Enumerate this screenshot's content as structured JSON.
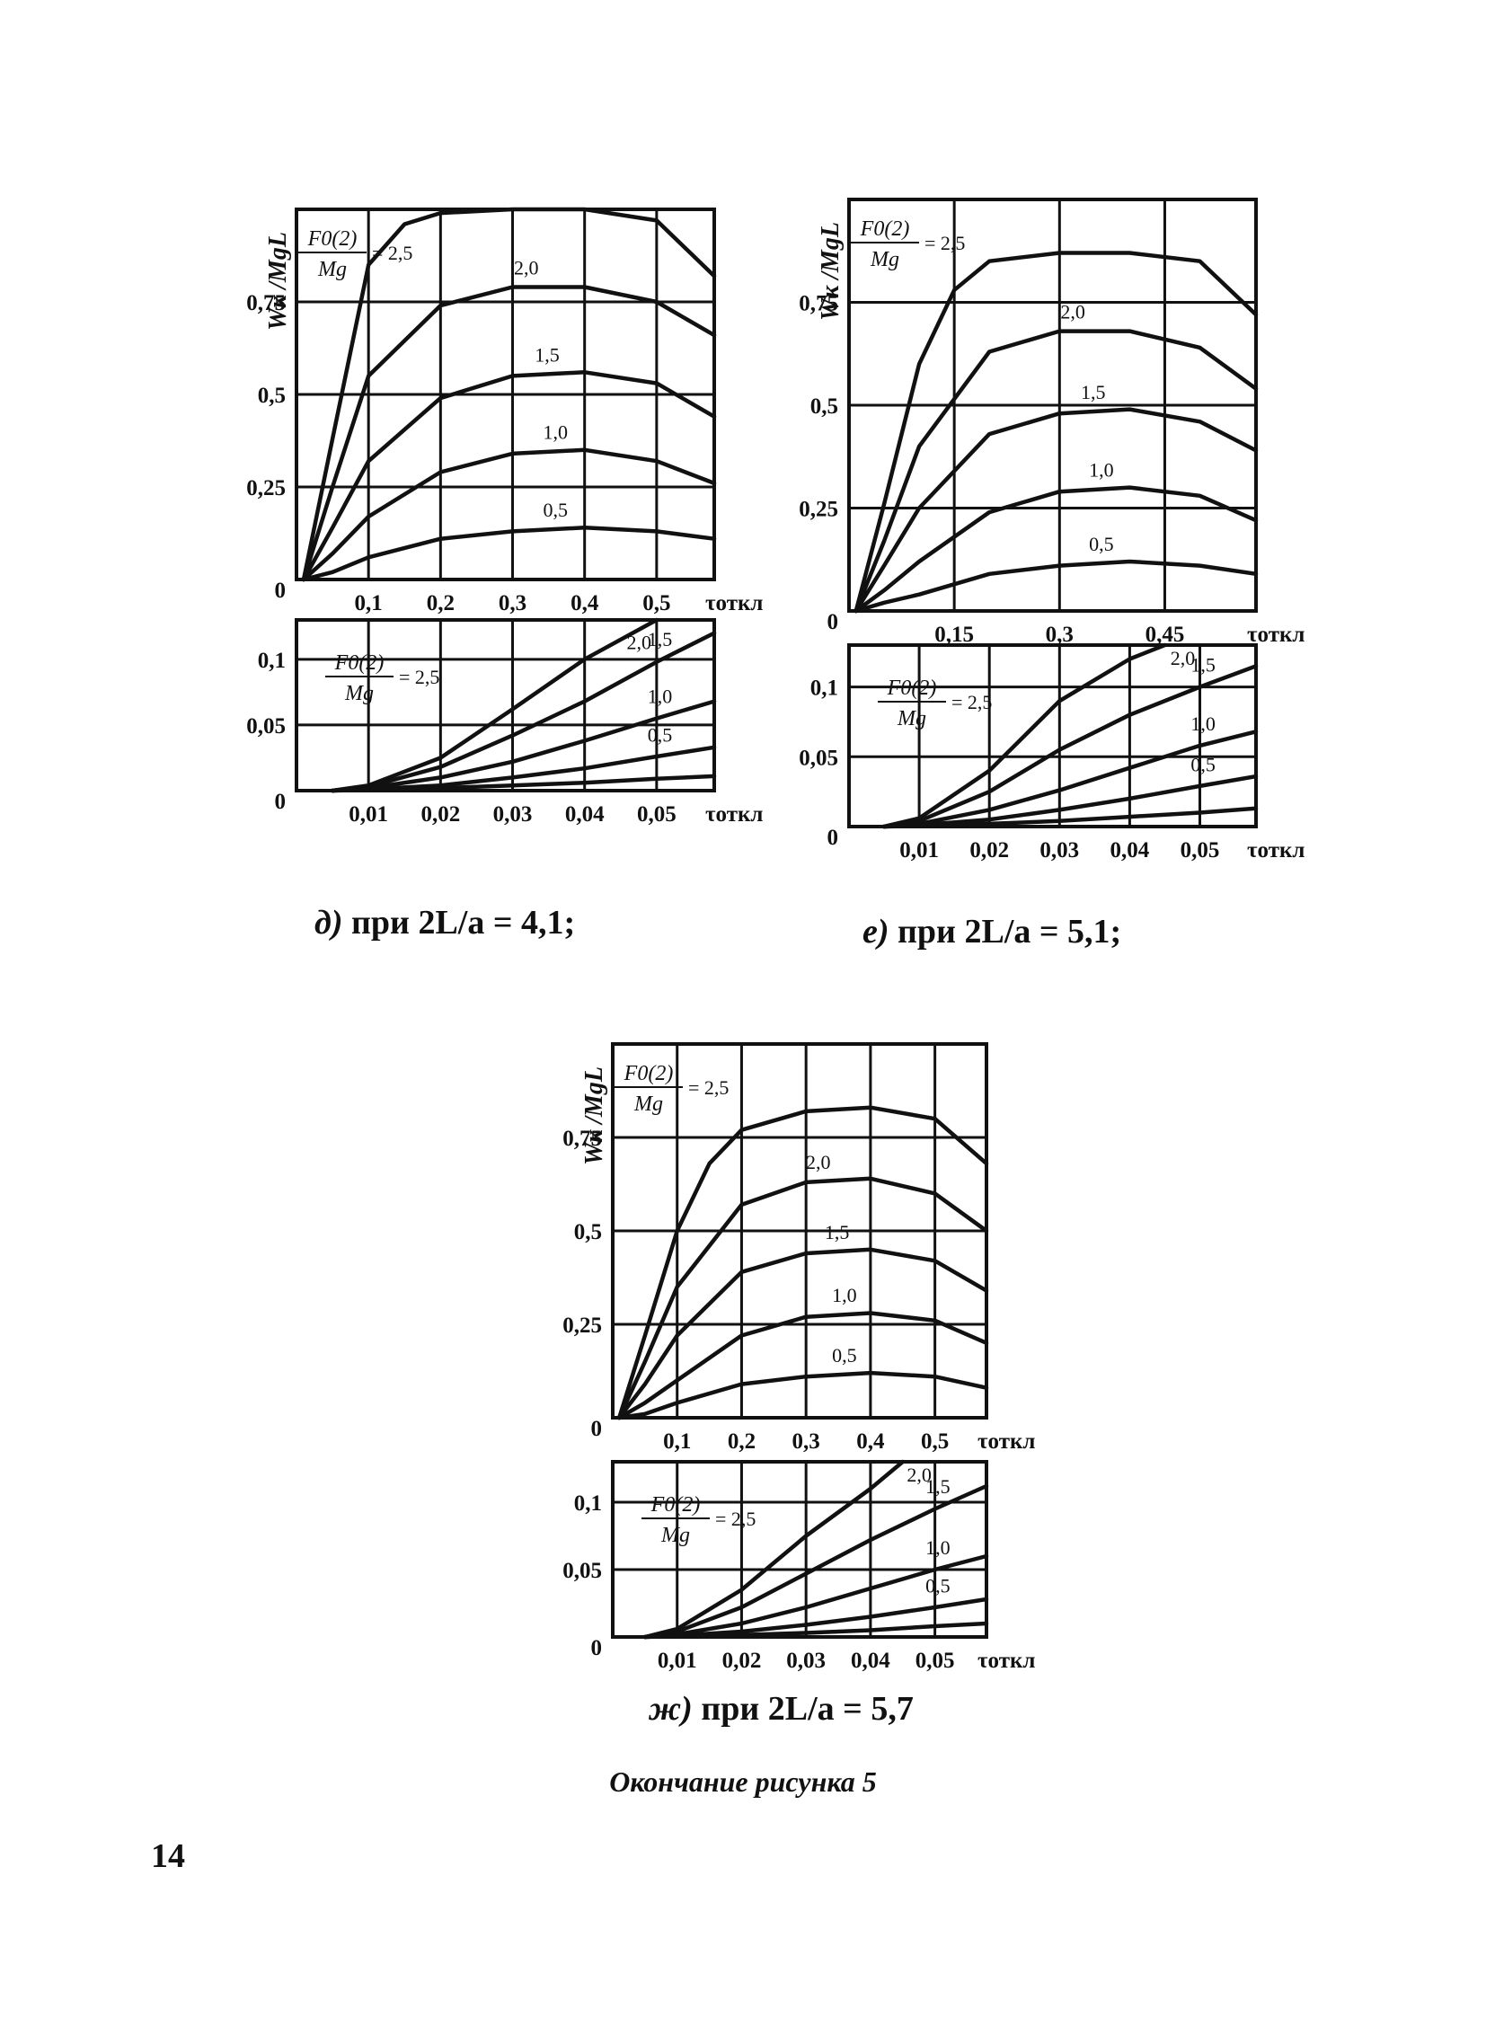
{
  "figure_caption": "Окончание рисунка 5",
  "page_number": "14",
  "panels": [
    {
      "id": "d",
      "caption_letter": "д)",
      "caption_text": " при ",
      "caption_expr": "2L/a = 4,1;"
    },
    {
      "id": "e",
      "caption_letter": "е)",
      "caption_text": " при ",
      "caption_expr": "2L/a = 5,1;"
    },
    {
      "id": "zh",
      "caption_letter": "ж)",
      "caption_text": " при ",
      "caption_expr": "2L/a = 5,7"
    }
  ],
  "chart_data": [
    {
      "id": "d-main",
      "type": "line",
      "ylabel": "Wк /MgL",
      "xlabel": "τоткл",
      "legend_numerator": "F0(2)",
      "legend_denominator": "Mg",
      "legend_equals": "= 2,5",
      "xlim": [
        0,
        0.58
      ],
      "ylim": [
        0,
        1.0
      ],
      "xticks": [
        0.1,
        0.2,
        0.3,
        0.4,
        0.5
      ],
      "xtick_labels": [
        "0,1",
        "0,2",
        "0,3",
        "0,4",
        "0,5"
      ],
      "yticks": [
        0,
        0.25,
        0.5,
        0.75
      ],
      "ytick_labels": [
        "0",
        "0,25",
        "0,5",
        "0,75"
      ],
      "series": [
        {
          "name": "2,5",
          "x": [
            0.01,
            0.05,
            0.1,
            0.15,
            0.2,
            0.3,
            0.4,
            0.5,
            0.58
          ],
          "y": [
            0,
            0.38,
            0.85,
            0.96,
            0.99,
            1.0,
            1.0,
            0.97,
            0.82
          ]
        },
        {
          "name": "2,0",
          "x": [
            0.01,
            0.05,
            0.1,
            0.2,
            0.3,
            0.4,
            0.5,
            0.58
          ],
          "y": [
            0,
            0.25,
            0.55,
            0.74,
            0.79,
            0.79,
            0.75,
            0.66
          ]
        },
        {
          "name": "1,5",
          "x": [
            0.01,
            0.05,
            0.1,
            0.2,
            0.3,
            0.4,
            0.5,
            0.58
          ],
          "y": [
            0,
            0.14,
            0.32,
            0.49,
            0.55,
            0.56,
            0.53,
            0.44
          ]
        },
        {
          "name": "1,0",
          "x": [
            0.01,
            0.05,
            0.1,
            0.2,
            0.3,
            0.4,
            0.5,
            0.58
          ],
          "y": [
            0,
            0.07,
            0.17,
            0.29,
            0.34,
            0.35,
            0.32,
            0.26
          ]
        },
        {
          "name": "0,5",
          "x": [
            0.01,
            0.05,
            0.1,
            0.2,
            0.3,
            0.4,
            0.5,
            0.58
          ],
          "y": [
            0,
            0.02,
            0.06,
            0.11,
            0.13,
            0.14,
            0.13,
            0.11
          ]
        }
      ],
      "grid": true
    },
    {
      "id": "d-zoom",
      "type": "line",
      "xlabel": "τоткл",
      "legend_numerator": "F0(2)",
      "legend_denominator": "Mg",
      "legend_equals": "= 2,5",
      "xlim": [
        0,
        0.058
      ],
      "ylim": [
        0,
        0.13
      ],
      "xticks": [
        0.01,
        0.02,
        0.03,
        0.04,
        0.05
      ],
      "xtick_labels": [
        "0,01",
        "0,02",
        "0,03",
        "0,04",
        "0,05"
      ],
      "yticks": [
        0,
        0.05,
        0.1
      ],
      "ytick_labels": [
        "0",
        "0,05",
        "0,1"
      ],
      "series": [
        {
          "name": "2,0",
          "x": [
            0.005,
            0.01,
            0.02,
            0.03,
            0.04,
            0.05
          ],
          "y": [
            0,
            0.004,
            0.025,
            0.062,
            0.1,
            0.13
          ]
        },
        {
          "name": "1,5",
          "x": [
            0.005,
            0.01,
            0.02,
            0.03,
            0.04,
            0.05,
            0.058
          ],
          "y": [
            0,
            0.003,
            0.018,
            0.042,
            0.068,
            0.098,
            0.12
          ]
        },
        {
          "name": "1,0",
          "x": [
            0.005,
            0.01,
            0.02,
            0.03,
            0.04,
            0.05,
            0.058
          ],
          "y": [
            0,
            0.002,
            0.01,
            0.022,
            0.038,
            0.055,
            0.068
          ]
        },
        {
          "name": "0,5",
          "x": [
            0.005,
            0.01,
            0.02,
            0.03,
            0.04,
            0.05,
            0.058
          ],
          "y": [
            0,
            0.001,
            0.004,
            0.01,
            0.017,
            0.026,
            0.033
          ]
        },
        {
          "name": "",
          "x": [
            0.005,
            0.01,
            0.02,
            0.03,
            0.04,
            0.05,
            0.058
          ],
          "y": [
            0,
            0.0005,
            0.002,
            0.004,
            0.006,
            0.009,
            0.011
          ]
        }
      ],
      "grid": true
    },
    {
      "id": "e-main",
      "type": "line",
      "ylabel": "Wк /MgL",
      "xlabel": "τоткл",
      "legend_numerator": "F0(2)",
      "legend_denominator": "Mg",
      "legend_equals": "= 2,5",
      "xlim": [
        0,
        0.58
      ],
      "ylim": [
        0,
        1.0
      ],
      "xticks": [
        0.15,
        0.3,
        0.45
      ],
      "xtick_labels": [
        "0,15",
        "0,3",
        "0,45"
      ],
      "yticks": [
        0,
        0.25,
        0.5,
        0.75
      ],
      "ytick_labels": [
        "0",
        "0,25",
        "0,5",
        "0,75"
      ],
      "series": [
        {
          "name": "2,5",
          "x": [
            0.01,
            0.05,
            0.1,
            0.15,
            0.2,
            0.3,
            0.4,
            0.5,
            0.58
          ],
          "y": [
            0,
            0.26,
            0.6,
            0.78,
            0.85,
            0.87,
            0.87,
            0.85,
            0.72
          ]
        },
        {
          "name": "2,0",
          "x": [
            0.01,
            0.05,
            0.1,
            0.2,
            0.3,
            0.4,
            0.5,
            0.58
          ],
          "y": [
            0,
            0.17,
            0.4,
            0.63,
            0.68,
            0.68,
            0.64,
            0.54
          ]
        },
        {
          "name": "1,5",
          "x": [
            0.01,
            0.05,
            0.1,
            0.2,
            0.3,
            0.4,
            0.5,
            0.58
          ],
          "y": [
            0,
            0.11,
            0.25,
            0.43,
            0.48,
            0.49,
            0.46,
            0.39
          ]
        },
        {
          "name": "1,0",
          "x": [
            0.01,
            0.05,
            0.1,
            0.2,
            0.3,
            0.4,
            0.5,
            0.58
          ],
          "y": [
            0,
            0.05,
            0.12,
            0.24,
            0.29,
            0.3,
            0.28,
            0.22
          ]
        },
        {
          "name": "0,5",
          "x": [
            0.01,
            0.05,
            0.1,
            0.2,
            0.3,
            0.4,
            0.5,
            0.58
          ],
          "y": [
            0,
            0.02,
            0.04,
            0.09,
            0.11,
            0.12,
            0.11,
            0.09
          ]
        }
      ],
      "grid": true
    },
    {
      "id": "e-zoom",
      "type": "line",
      "xlabel": "τоткл",
      "legend_numerator": "F0(2)",
      "legend_denominator": "Mg",
      "legend_equals": "= 2,5",
      "xlim": [
        0,
        0.058
      ],
      "ylim": [
        0,
        0.13
      ],
      "xticks": [
        0.01,
        0.02,
        0.03,
        0.04,
        0.05
      ],
      "xtick_labels": [
        "0,01",
        "0,02",
        "0,03",
        "0,04",
        "0,05"
      ],
      "yticks": [
        0,
        0.05,
        0.1
      ],
      "ytick_labels": [
        "0",
        "0,05",
        "0,1"
      ],
      "series": [
        {
          "name": "2,0",
          "x": [
            0.005,
            0.01,
            0.02,
            0.03,
            0.04,
            0.045
          ],
          "y": [
            0,
            0.006,
            0.04,
            0.09,
            0.12,
            0.13
          ]
        },
        {
          "name": "1,5",
          "x": [
            0.005,
            0.01,
            0.02,
            0.03,
            0.04,
            0.05,
            0.058
          ],
          "y": [
            0,
            0.004,
            0.025,
            0.055,
            0.08,
            0.1,
            0.115
          ]
        },
        {
          "name": "1,0",
          "x": [
            0.005,
            0.01,
            0.02,
            0.03,
            0.04,
            0.05,
            0.058
          ],
          "y": [
            0,
            0.002,
            0.012,
            0.026,
            0.042,
            0.058,
            0.068
          ]
        },
        {
          "name": "0,5",
          "x": [
            0.005,
            0.01,
            0.02,
            0.03,
            0.04,
            0.05,
            0.058
          ],
          "y": [
            0,
            0.001,
            0.005,
            0.012,
            0.02,
            0.029,
            0.036
          ]
        },
        {
          "name": "",
          "x": [
            0.005,
            0.01,
            0.02,
            0.03,
            0.04,
            0.05,
            0.058
          ],
          "y": [
            0,
            0.0005,
            0.002,
            0.004,
            0.007,
            0.01,
            0.013
          ]
        }
      ],
      "grid": true
    },
    {
      "id": "zh-main",
      "type": "line",
      "ylabel": "Wк /MgL",
      "xlabel": "τоткл",
      "legend_numerator": "F0(2)",
      "legend_denominator": "Mg",
      "legend_equals": "= 2,5",
      "xlim": [
        0,
        0.58
      ],
      "ylim": [
        0,
        1.0
      ],
      "xticks": [
        0.1,
        0.2,
        0.3,
        0.4,
        0.5
      ],
      "xtick_labels": [
        "0,1",
        "0,2",
        "0,3",
        "0,4",
        "0,5"
      ],
      "yticks": [
        0,
        0.25,
        0.5,
        0.75
      ],
      "ytick_labels": [
        "0",
        "0,25",
        "0,5",
        "0,75"
      ],
      "series": [
        {
          "name": "2,5",
          "x": [
            0.01,
            0.05,
            0.1,
            0.15,
            0.2,
            0.3,
            0.4,
            0.5,
            0.58
          ],
          "y": [
            0,
            0.22,
            0.5,
            0.68,
            0.77,
            0.82,
            0.83,
            0.8,
            0.68
          ]
        },
        {
          "name": "2,0",
          "x": [
            0.01,
            0.05,
            0.1,
            0.2,
            0.3,
            0.4,
            0.5,
            0.58
          ],
          "y": [
            0,
            0.15,
            0.35,
            0.57,
            0.63,
            0.64,
            0.6,
            0.5
          ]
        },
        {
          "name": "1,5",
          "x": [
            0.01,
            0.05,
            0.1,
            0.2,
            0.3,
            0.4,
            0.5,
            0.58
          ],
          "y": [
            0,
            0.09,
            0.22,
            0.39,
            0.44,
            0.45,
            0.42,
            0.34
          ]
        },
        {
          "name": "1,0",
          "x": [
            0.01,
            0.05,
            0.1,
            0.2,
            0.3,
            0.4,
            0.5,
            0.58
          ],
          "y": [
            0,
            0.04,
            0.1,
            0.22,
            0.27,
            0.28,
            0.26,
            0.2
          ]
        },
        {
          "name": "0,5",
          "x": [
            0.01,
            0.05,
            0.1,
            0.2,
            0.3,
            0.4,
            0.5,
            0.58
          ],
          "y": [
            0,
            0.01,
            0.04,
            0.09,
            0.11,
            0.12,
            0.11,
            0.08
          ]
        }
      ],
      "grid": true
    },
    {
      "id": "zh-zoom",
      "type": "line",
      "xlabel": "τоткл",
      "legend_numerator": "F0(2)",
      "legend_denominator": "Mg",
      "legend_equals": "= 2,5",
      "xlim": [
        0,
        0.058
      ],
      "ylim": [
        0,
        0.13
      ],
      "xticks": [
        0.01,
        0.02,
        0.03,
        0.04,
        0.05
      ],
      "xtick_labels": [
        "0,01",
        "0,02",
        "0,03",
        "0,04",
        "0,05"
      ],
      "yticks": [
        0,
        0.05,
        0.1
      ],
      "ytick_labels": [
        "0",
        "0,05",
        "0,1"
      ],
      "series": [
        {
          "name": "2,0",
          "x": [
            0.005,
            0.01,
            0.02,
            0.03,
            0.04,
            0.045
          ],
          "y": [
            0,
            0.006,
            0.035,
            0.075,
            0.11,
            0.13
          ]
        },
        {
          "name": "1,5",
          "x": [
            0.005,
            0.01,
            0.02,
            0.03,
            0.04,
            0.05,
            0.058
          ],
          "y": [
            0,
            0.004,
            0.022,
            0.047,
            0.072,
            0.095,
            0.112
          ]
        },
        {
          "name": "1,0",
          "x": [
            0.005,
            0.01,
            0.02,
            0.03,
            0.04,
            0.05,
            0.058
          ],
          "y": [
            0,
            0.002,
            0.01,
            0.022,
            0.036,
            0.05,
            0.06
          ]
        },
        {
          "name": "0,5",
          "x": [
            0.005,
            0.01,
            0.02,
            0.03,
            0.04,
            0.05,
            0.058
          ],
          "y": [
            0,
            0.001,
            0.004,
            0.009,
            0.015,
            0.022,
            0.028
          ]
        },
        {
          "name": "",
          "x": [
            0.005,
            0.01,
            0.02,
            0.03,
            0.04,
            0.05,
            0.058
          ],
          "y": [
            0,
            0.0005,
            0.0015,
            0.003,
            0.005,
            0.008,
            0.01
          ]
        }
      ],
      "grid": true
    }
  ]
}
